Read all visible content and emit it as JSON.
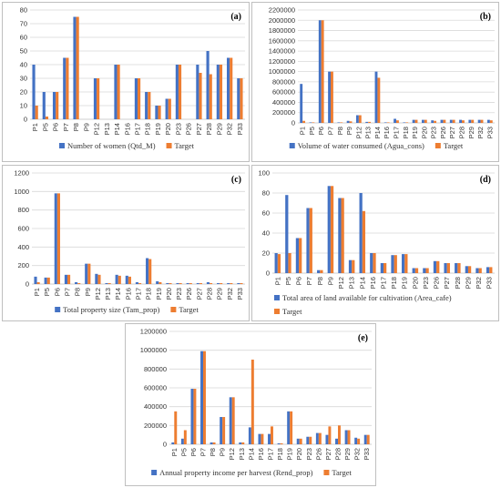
{
  "colors": {
    "series_1": "#4472c4",
    "series_2": "#ed7d31",
    "grid": "#d9d9d9",
    "axis": "#bfbfbf"
  },
  "chart_data": [
    {
      "id": "a",
      "panel_label": "(a)",
      "type": "bar",
      "categories": [
        "P1",
        "P5",
        "P6",
        "P7",
        "P8",
        "P9",
        "P12",
        "P13",
        "P14",
        "P16",
        "P17",
        "P18",
        "P19",
        "P20",
        "P23",
        "P26",
        "P27",
        "P28",
        "P29",
        "P32",
        "P33"
      ],
      "series": [
        {
          "name": "Number of women (Qtd_M)",
          "values": [
            40,
            20,
            20,
            45,
            75,
            0,
            30,
            0,
            40,
            0,
            30,
            20,
            10,
            15,
            40,
            0,
            40,
            50,
            40,
            45,
            30
          ]
        },
        {
          "name": "Target",
          "values": [
            10,
            2,
            20,
            45,
            75,
            0,
            30,
            0,
            40,
            0,
            30,
            20,
            10,
            15,
            40,
            0,
            34,
            33,
            40,
            45,
            30
          ]
        }
      ],
      "ylim": [
        0,
        80
      ],
      "yticks": [
        "0",
        "10",
        "20",
        "30",
        "40",
        "50",
        "60",
        "70",
        "80"
      ],
      "grid": true,
      "legend": "bottom"
    },
    {
      "id": "b",
      "panel_label": "(b)",
      "type": "bar",
      "categories": [
        "P1",
        "P5",
        "P6",
        "P7",
        "P8",
        "P9",
        "P12",
        "P13",
        "P14",
        "P16",
        "P17",
        "P18",
        "P19",
        "P20",
        "P23",
        "P26",
        "P27",
        "P28",
        "P29",
        "P32",
        "P33"
      ],
      "series": [
        {
          "name": "Volume of water consumed (Agua_cons)",
          "values": [
            760000,
            10000,
            2000000,
            1000000,
            10000,
            40000,
            150000,
            20000,
            1000000,
            10000,
            80000,
            10000,
            60000,
            60000,
            50000,
            60000,
            60000,
            60000,
            60000,
            60000,
            60000
          ]
        },
        {
          "name": "Target",
          "values": [
            40000,
            10000,
            2000000,
            1000000,
            10000,
            30000,
            150000,
            20000,
            880000,
            10000,
            50000,
            10000,
            60000,
            60000,
            40000,
            60000,
            60000,
            50000,
            60000,
            60000,
            50000
          ]
        }
      ],
      "ylim": [
        0,
        2200000
      ],
      "yticks": [
        "0",
        "200000",
        "400000",
        "600000",
        "800000",
        "1000000",
        "1200000",
        "1400000",
        "1600000",
        "1800000",
        "2000000",
        "2200000"
      ],
      "grid": true,
      "legend": "bottom"
    },
    {
      "id": "c",
      "panel_label": "(c)",
      "type": "bar",
      "categories": [
        "P1",
        "P5",
        "P6",
        "P7",
        "P8",
        "P9",
        "P12",
        "P13",
        "P14",
        "P16",
        "P17",
        "P18",
        "P19",
        "P20",
        "P23",
        "P26",
        "P27",
        "P28",
        "P29",
        "P32",
        "P33"
      ],
      "series": [
        {
          "name": "Total property size (Tam_prop)",
          "values": [
            80,
            70,
            980,
            100,
            20,
            220,
            110,
            10,
            100,
            90,
            20,
            280,
            30,
            10,
            10,
            10,
            10,
            20,
            10,
            10,
            10
          ]
        },
        {
          "name": "Target",
          "values": [
            20,
            70,
            980,
            100,
            10,
            220,
            100,
            10,
            90,
            80,
            10,
            270,
            20,
            10,
            10,
            10,
            10,
            10,
            10,
            10,
            10
          ]
        }
      ],
      "ylim": [
        0,
        1200
      ],
      "yticks": [
        "0",
        "200",
        "400",
        "600",
        "800",
        "1000",
        "1200"
      ],
      "grid": true,
      "legend": "bottom"
    },
    {
      "id": "d",
      "panel_label": "(d)",
      "type": "bar",
      "categories": [
        "P1",
        "P5",
        "P6",
        "P7",
        "P8",
        "P9",
        "P12",
        "P13",
        "P14",
        "P16",
        "P17",
        "P18",
        "P19",
        "P20",
        "P23",
        "P26",
        "P27",
        "P28",
        "P29",
        "P32",
        "P33"
      ],
      "series": [
        {
          "name": "Total area of land available for cultivation (Area_cafe)",
          "values": [
            20,
            78,
            35,
            65,
            3,
            87,
            75,
            13,
            80,
            20,
            10,
            18,
            19,
            5,
            5,
            12,
            10,
            10,
            7,
            5,
            6
          ]
        },
        {
          "name": "Target",
          "values": [
            19,
            20,
            35,
            65,
            3,
            87,
            75,
            13,
            62,
            20,
            10,
            18,
            19,
            5,
            5,
            12,
            10,
            10,
            7,
            5,
            6
          ]
        }
      ],
      "ylim": [
        0,
        100
      ],
      "yticks": [
        "0",
        "20",
        "40",
        "60",
        "80",
        "100"
      ],
      "grid": true,
      "legend": "bottom"
    },
    {
      "id": "e",
      "panel_label": "(e)",
      "type": "bar",
      "categories": [
        "P1",
        "P5",
        "P6",
        "P7",
        "P8",
        "P9",
        "P12",
        "P13",
        "P14",
        "P16",
        "P17",
        "P18",
        "P19",
        "P20",
        "P23",
        "P26",
        "P27",
        "P28",
        "P29",
        "P32",
        "P33"
      ],
      "series": [
        {
          "name": "Annual property income per harvest (Rend_prop)",
          "values": [
            20000,
            60000,
            590000,
            990000,
            20000,
            290000,
            500000,
            20000,
            180000,
            110000,
            110000,
            10000,
            350000,
            60000,
            80000,
            120000,
            100000,
            60000,
            150000,
            70000,
            100000
          ]
        },
        {
          "name": "Target",
          "values": [
            350000,
            150000,
            590000,
            990000,
            20000,
            290000,
            500000,
            20000,
            900000,
            110000,
            190000,
            10000,
            350000,
            60000,
            80000,
            120000,
            190000,
            200000,
            150000,
            60000,
            100000
          ]
        }
      ],
      "ylim": [
        0,
        1200000
      ],
      "yticks": [
        "0",
        "200000",
        "400000",
        "600000",
        "800000",
        "1000000",
        "1200000"
      ],
      "grid": true,
      "legend": "bottom"
    }
  ]
}
